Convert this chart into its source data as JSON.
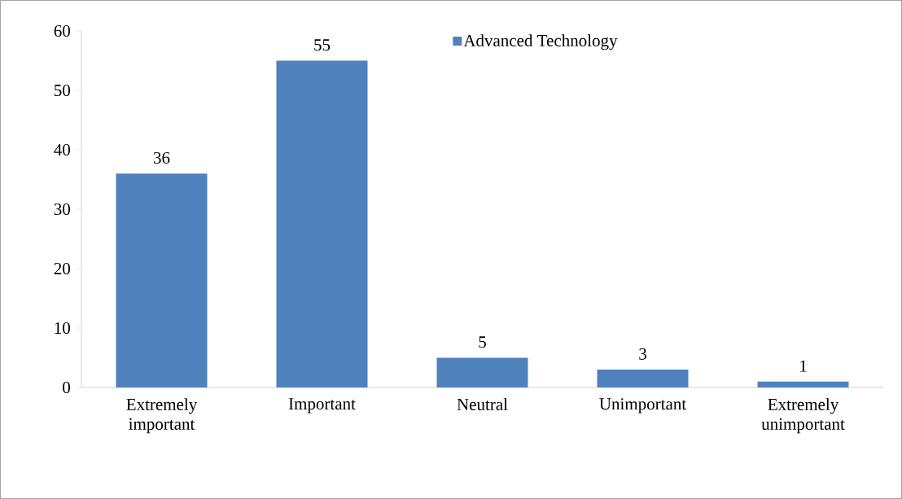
{
  "chart_data": {
    "type": "bar",
    "categories": [
      "Extremely important",
      "Important",
      "Neutral",
      "Unimportant",
      "Extremely unimportant"
    ],
    "series": [
      {
        "name": "Advanced Technology",
        "color": "#4f81bd",
        "values": [
          36,
          55,
          5,
          3,
          1
        ]
      }
    ],
    "ylim": [
      0,
      60
    ],
    "yticks": [
      0,
      10,
      20,
      30,
      40,
      50,
      60
    ],
    "data_labels": true,
    "legend": "top right",
    "grid": false
  }
}
